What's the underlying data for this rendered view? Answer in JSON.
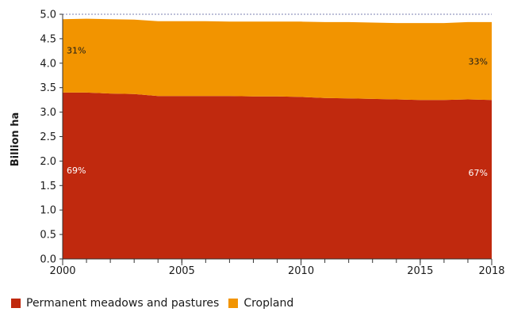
{
  "chart_data": {
    "type": "area",
    "stacked": true,
    "ylabel": "Billion ha",
    "xlabel": "",
    "xlim": [
      2000,
      2018
    ],
    "ylim": [
      0,
      5.0
    ],
    "x_ticks": [
      2000,
      2005,
      2010,
      2015,
      2018
    ],
    "y_ticks": [
      "0.0",
      "0.5",
      "1.0",
      "1.5",
      "2.0",
      "2.5",
      "3.0",
      "3.5",
      "4.0",
      "4.5",
      "5.0"
    ],
    "grid": "dashed line at 5.0 only",
    "legend_position": "bottom-left",
    "x": [
      2000,
      2001,
      2002,
      2003,
      2004,
      2005,
      2006,
      2007,
      2008,
      2009,
      2010,
      2011,
      2012,
      2013,
      2014,
      2015,
      2016,
      2017,
      2018
    ],
    "series": [
      {
        "name": "Permanent meadows and pastures",
        "color": "#c0290e",
        "values": [
          3.4,
          3.4,
          3.38,
          3.37,
          3.33,
          3.33,
          3.33,
          3.33,
          3.32,
          3.32,
          3.31,
          3.29,
          3.28,
          3.27,
          3.26,
          3.25,
          3.25,
          3.26,
          3.25
        ],
        "share_labels": {
          "start": "69%",
          "end": "67%"
        },
        "label_color": "#ffffff"
      },
      {
        "name": "Cropland",
        "color": "#f29400",
        "values": [
          1.5,
          1.51,
          1.52,
          1.52,
          1.53,
          1.53,
          1.53,
          1.52,
          1.53,
          1.53,
          1.54,
          1.55,
          1.56,
          1.56,
          1.56,
          1.57,
          1.57,
          1.58,
          1.59
        ],
        "share_labels": {
          "start": "31%",
          "end": "33%"
        },
        "label_color": "#1a1a1a"
      }
    ],
    "share_label_y": {
      "start": [
        1.75,
        4.2
      ],
      "end": [
        1.7,
        3.97
      ]
    }
  }
}
